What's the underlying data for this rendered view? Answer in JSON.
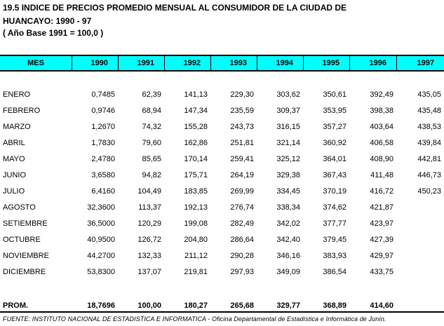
{
  "title": {
    "line1": "19.5 INDICE DE PRECIOS PROMEDIO MENSUAL AL CONSUMIDOR DE LA CIUDAD DE",
    "line2": "HUANCAYO: 1990 - 97",
    "line3": "( Año Base 1991 = 100,0 )"
  },
  "table": {
    "headers": [
      "MES",
      "1990",
      "1991",
      "1992",
      "1993",
      "1994",
      "1995",
      "1996",
      "1997"
    ],
    "rows": [
      {
        "mes": "ENERO",
        "values": [
          "0,7485",
          "62,39",
          "141,13",
          "229,30",
          "303,62",
          "350,61",
          "392,49",
          "435,05"
        ]
      },
      {
        "mes": "FEBRERO",
        "values": [
          "0,9746",
          "68,94",
          "147,34",
          "235,59",
          "309,37",
          "353,95",
          "398,38",
          "435,48"
        ]
      },
      {
        "mes": "MARZO",
        "values": [
          "1,2670",
          "74,32",
          "155,28",
          "243,73",
          "316,15",
          "357,27",
          "403,64",
          "438,53"
        ]
      },
      {
        "mes": "ABRIL",
        "values": [
          "1,7830",
          "79,60",
          "162,86",
          "251,81",
          "321,14",
          "360,92",
          "406,58",
          "439,84"
        ]
      },
      {
        "mes": "MAYO",
        "values": [
          "2,4780",
          "85,65",
          "170,14",
          "259,41",
          "325,12",
          "364,01",
          "408,90",
          "442,81"
        ]
      },
      {
        "mes": "JUNIO",
        "values": [
          "3,6580",
          "94,82",
          "175,71",
          "264,19",
          "329,38",
          "367,43",
          "411,48",
          "446,73"
        ]
      },
      {
        "mes": "JULIO",
        "values": [
          "6,4160",
          "104,49",
          "183,85",
          "269,99",
          "334,45",
          "370,19",
          "416,72",
          "450,23"
        ]
      },
      {
        "mes": "AGOSTO",
        "values": [
          "32,3600",
          "113,37",
          "192,13",
          "276,74",
          "338,34",
          "374,62",
          "421,87",
          ""
        ]
      },
      {
        "mes": "SETIEMBRE",
        "values": [
          "36,5000",
          "120,29",
          "199,08",
          "282,49",
          "342,02",
          "377,77",
          "423,97",
          ""
        ]
      },
      {
        "mes": "OCTUBRE",
        "values": [
          "40,9500",
          "126,72",
          "204,80",
          "286,64",
          "342,40",
          "379,45",
          "427,39",
          ""
        ]
      },
      {
        "mes": "NOVIEMBRE",
        "values": [
          "44,2700",
          "132,33",
          "211,12",
          "290,28",
          "346,16",
          "383,93",
          "429,97",
          ""
        ]
      },
      {
        "mes": "DICIEMBRE",
        "values": [
          "53,8300",
          "137,07",
          "219,81",
          "297,93",
          "349,09",
          "386,54",
          "433,75",
          ""
        ]
      }
    ],
    "average": {
      "mes": "PROM.",
      "values": [
        "18,7696",
        "100,00",
        "180,27",
        "265,68",
        "329,77",
        "368,89",
        "414,60",
        ""
      ]
    }
  },
  "source": "FUENTE: INSTITUTO NACIONAL DE ESTADISTICA E INFORMATICA - Oficina Departamental de Estadística e Informática de Junín."
}
